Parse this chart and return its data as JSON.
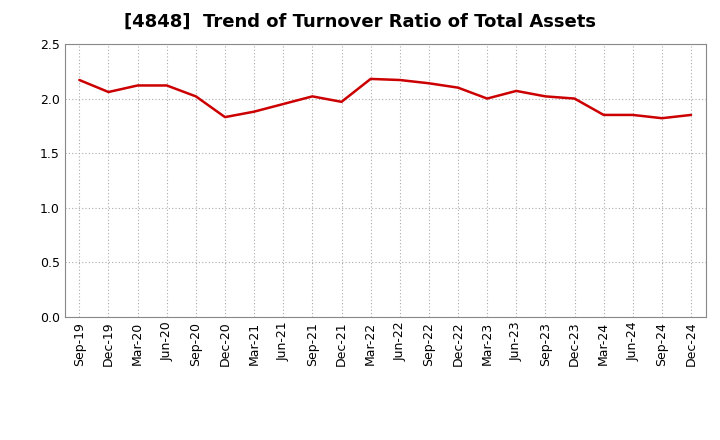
{
  "title": "[4848]  Trend of Turnover Ratio of Total Assets",
  "x_labels": [
    "Sep-19",
    "Dec-19",
    "Mar-20",
    "Jun-20",
    "Sep-20",
    "Dec-20",
    "Mar-21",
    "Jun-21",
    "Sep-21",
    "Dec-21",
    "Mar-22",
    "Jun-22",
    "Sep-22",
    "Dec-22",
    "Mar-23",
    "Jun-23",
    "Sep-23",
    "Dec-23",
    "Mar-24",
    "Jun-24",
    "Sep-24",
    "Dec-24"
  ],
  "y_values": [
    2.17,
    2.06,
    2.12,
    2.12,
    2.02,
    1.83,
    1.88,
    1.95,
    2.02,
    1.97,
    2.18,
    2.17,
    2.14,
    2.1,
    2.0,
    2.07,
    2.02,
    2.0,
    1.85,
    1.85,
    1.82,
    1.85
  ],
  "line_color": "#cc0000",
  "line_width": 1.8,
  "ylim": [
    0.0,
    2.5
  ],
  "yticks": [
    0.0,
    0.5,
    1.0,
    1.5,
    2.0,
    2.5
  ],
  "grid_color": "#aaaaaa",
  "bg_color": "#ffffff",
  "title_fontsize": 13,
  "tick_fontsize": 9
}
